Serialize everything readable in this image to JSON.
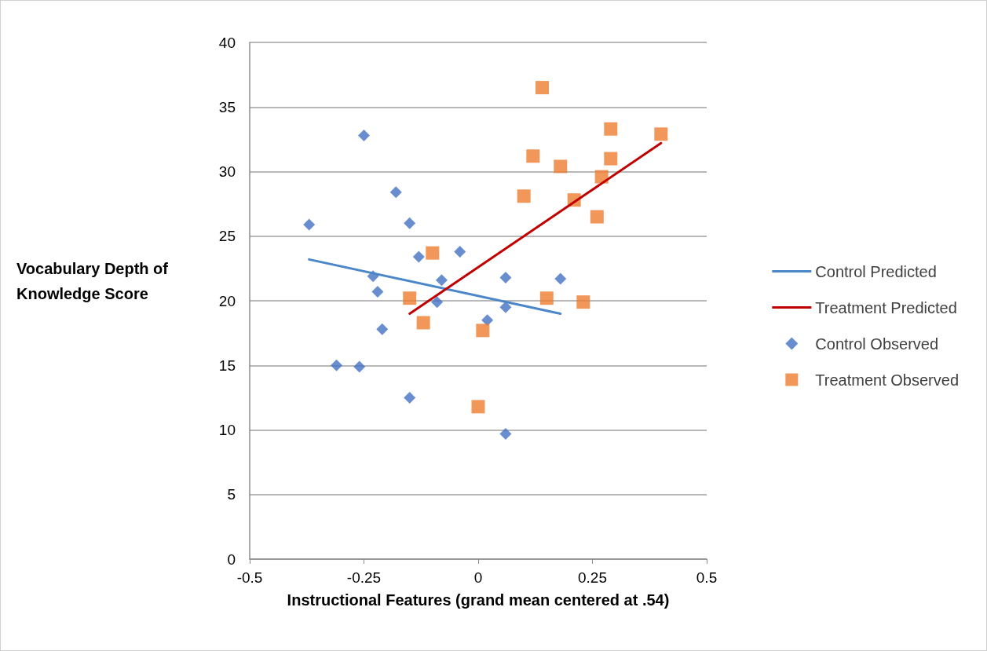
{
  "chart_data": {
    "type": "scatter",
    "xlabel": "Instructional Features (grand mean centered at .54)",
    "ylabel": "Vocabulary Depth of Knowledge Score",
    "xlim": [
      -0.5,
      0.5
    ],
    "xticks": [
      -0.5,
      -0.25,
      0,
      0.25,
      0.5
    ],
    "ylim": [
      0,
      40
    ],
    "yticks": [
      0,
      5,
      10,
      15,
      20,
      25,
      30,
      35,
      40
    ],
    "grid": "y",
    "legend": "right",
    "series": [
      {
        "name": "Control Predicted",
        "type": "line",
        "color": "#4a86c8",
        "marker": "none",
        "line_style": "solid",
        "x": [
          -0.37,
          0.18
        ],
        "values": [
          23.2,
          19.0
        ]
      },
      {
        "name": "Treatment Predicted",
        "type": "line",
        "color": "#c00000",
        "marker": "none",
        "line_style": "solid",
        "x": [
          -0.15,
          0.4
        ],
        "values": [
          19.0,
          32.2
        ]
      },
      {
        "name": "Control Observed",
        "type": "scatter",
        "color": "#4472c4",
        "marker": "diamond",
        "x": [
          -0.37,
          -0.25,
          -0.18,
          -0.15,
          -0.23,
          -0.22,
          -0.13,
          -0.04,
          -0.08,
          -0.09,
          -0.21,
          -0.31,
          -0.26,
          -0.15,
          0.06,
          0.02,
          0.06,
          0.06,
          0.18
        ],
        "values": [
          25.9,
          32.8,
          28.4,
          26.0,
          21.9,
          20.7,
          23.4,
          23.8,
          21.6,
          19.9,
          17.8,
          15.0,
          14.9,
          12.5,
          9.7,
          18.5,
          19.5,
          21.8,
          21.7
        ]
      },
      {
        "name": "Treatment Observed",
        "type": "scatter",
        "color": "#ed7d31",
        "marker": "square",
        "x": [
          0.14,
          0.29,
          0.4,
          0.12,
          0.18,
          0.29,
          0.27,
          0.1,
          0.21,
          0.26,
          -0.1,
          -0.15,
          0.15,
          0.23,
          -0.12,
          0.01,
          0.0
        ],
        "values": [
          36.5,
          33.3,
          32.9,
          31.2,
          30.4,
          31.0,
          29.6,
          28.1,
          27.8,
          26.5,
          23.7,
          20.2,
          20.2,
          19.9,
          18.3,
          17.7,
          11.8
        ]
      }
    ]
  }
}
